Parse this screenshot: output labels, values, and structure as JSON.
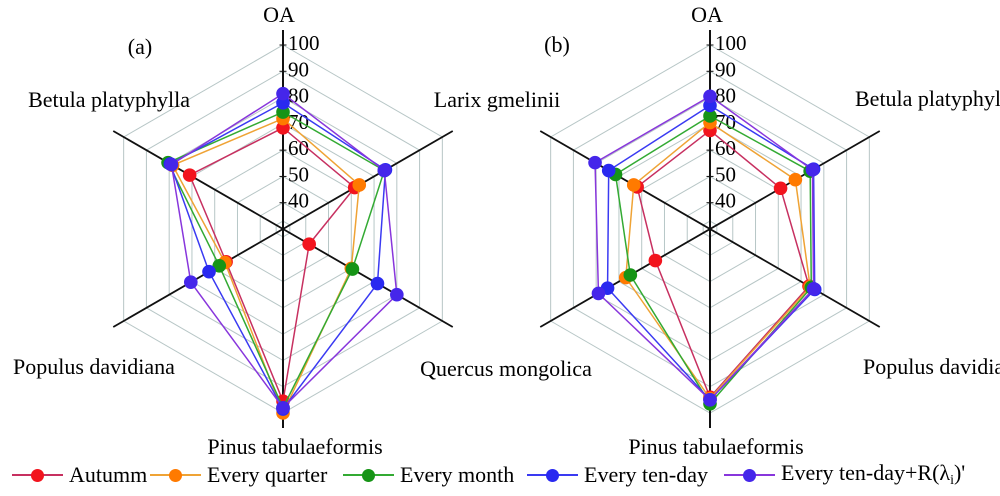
{
  "figure": {
    "panel_a": "(a)",
    "panel_b": "(b)",
    "background": "#ffffff"
  },
  "species": {
    "oa": "OA",
    "larix": "Larix gmelinii",
    "quercus": "Quercus mongolica",
    "pinus": "Pinus tabulaeformis",
    "populus": "Populus davidiana",
    "betula": "Betula platyphylla"
  },
  "axis": {
    "min": 30,
    "max": 100,
    "ticks": [
      40,
      50,
      60,
      70,
      80,
      90,
      100
    ],
    "grid_color": "#B7C6C6",
    "axis_color": "#111111"
  },
  "legend": {
    "items": [
      {
        "label": "Autumm",
        "marker_color": "#F2141E",
        "line_color": "#C73060"
      },
      {
        "label": "Every quarter",
        "marker_color": "#FF7A00",
        "line_color": "#EFA335"
      },
      {
        "label": "Every month",
        "marker_color": "#169416",
        "line_color": "#33AA33"
      },
      {
        "label": "Every ten-day",
        "marker_color": "#2929F0",
        "line_color": "#3A3AF2"
      },
      {
        "label_prefix": "Every ten-day+R(λ",
        "label_sub": "i",
        "label_suffix": ")'",
        "marker_color": "#4526EA",
        "line_color": "#8836DC"
      }
    ]
  },
  "chart_data": [
    {
      "type": "radar",
      "panel": "(a)",
      "value_range": [
        30,
        100
      ],
      "axes": [
        "OA",
        "Larix gmelinii",
        "Quercus mongolica",
        "Pinus tabulaeformis",
        "Populus davidiana",
        "Betula platyphylla"
      ],
      "series": [
        {
          "name": "Autumm",
          "values": [
            68.5,
            61.5,
            41.5,
            95.5,
            55,
            71
          ]
        },
        {
          "name": "Every quarter",
          "values": [
            72,
            63.5,
            60,
            100,
            55.5,
            78.5
          ]
        },
        {
          "name": "Every month",
          "values": [
            74.5,
            74.5,
            60.5,
            98,
            58,
            80.5
          ]
        },
        {
          "name": "Every ten-day",
          "values": [
            78,
            75,
            71.5,
            98.5,
            62.5,
            79.5
          ]
        },
        {
          "name": "Every ten-day+R(λi)'",
          "values": [
            81.5,
            74.5,
            80,
            98,
            70.5,
            79
          ]
        }
      ]
    },
    {
      "type": "radar",
      "panel": "(b)",
      "value_range": [
        30,
        100
      ],
      "axes": [
        "OA",
        "Betula platyphylla",
        "Populus davidiana",
        "Pinus tabulaeformis",
        "Quercus mongolica",
        "Larix gmelinii"
      ],
      "series": [
        {
          "name": "Autumm",
          "values": [
            67.5,
            61,
            73.5,
            94,
            54,
            62
          ]
        },
        {
          "name": "Every quarter",
          "values": [
            70.5,
            67.5,
            74,
            94.5,
            67,
            63.5
          ]
        },
        {
          "name": "Every month",
          "values": [
            73,
            74,
            74.5,
            96.5,
            65,
            71.5
          ]
        },
        {
          "name": "Every ten-day",
          "values": [
            77,
            75.5,
            76,
            95,
            75,
            74.5
          ]
        },
        {
          "name": "Every ten-day+R(λi)'",
          "values": [
            80.5,
            75,
            75.5,
            95,
            79,
            80.5
          ]
        }
      ]
    }
  ]
}
